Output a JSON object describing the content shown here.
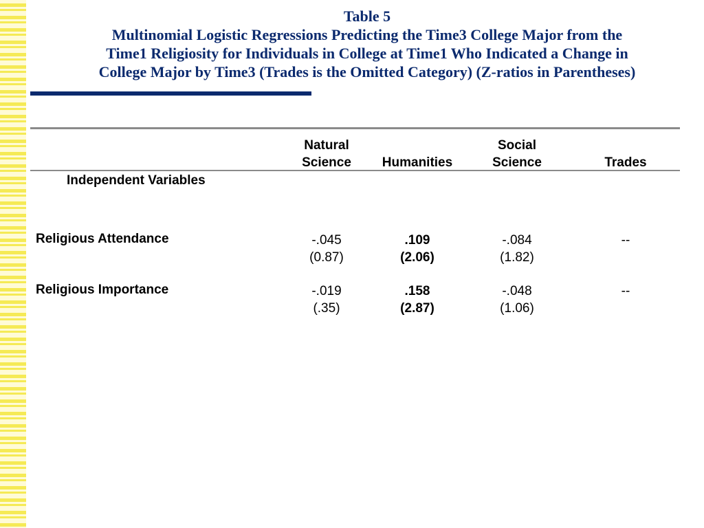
{
  "title": {
    "line1": "Table 5",
    "line2": "Multinomial Logistic Regressions Predicting the Time3 College Major from the",
    "line3": "Time1 Religiosity for Individuals in College at Time1 Who Indicated a Change in",
    "line4": "College Major by Time3 (Trades is the Omitted Category) (Z-ratios in Parentheses)"
  },
  "columns": {
    "natural_science": {
      "line1": "Natural",
      "line2": "Science"
    },
    "humanities": {
      "line1": "Humanities"
    },
    "social_science": {
      "line1": "Social",
      "line2": "Science"
    },
    "trades": {
      "line1": "Trades"
    }
  },
  "independent_variables_label": "Independent Variables",
  "rows": [
    {
      "label": "Religious Attendance",
      "natural_science": {
        "coef": "-.045",
        "z": "(0.87)"
      },
      "humanities": {
        "coef": ".109",
        "z": "(2.06)"
      },
      "social_science": {
        "coef": "-.084",
        "z": "(1.82)"
      },
      "trades": {
        "coef": "--"
      }
    },
    {
      "label": "Religious Importance",
      "natural_science": {
        "coef": "-.019",
        "z": "(.35)"
      },
      "humanities": {
        "coef": ".158",
        "z": "(2.87)"
      },
      "social_science": {
        "coef": "-.048",
        "z": "(1.06)"
      },
      "trades": {
        "coef": "--"
      }
    }
  ],
  "colors": {
    "title": "#0b2a6e",
    "rule": "#8a8a8a",
    "stripe": "#f5ea55"
  }
}
